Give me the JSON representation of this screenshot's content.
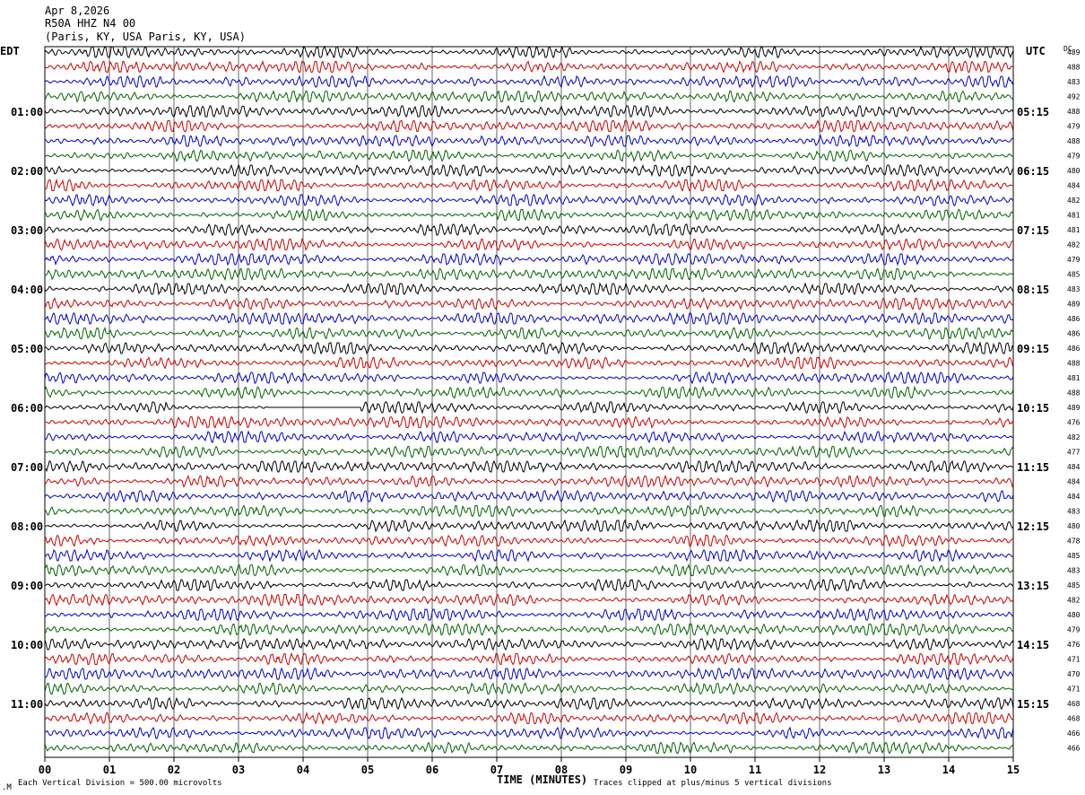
{
  "header": {
    "date": "Apr 8,2026",
    "station": "R50A HHZ N4 00",
    "location": "(Paris, KY, USA Paris, KY, USA)"
  },
  "left_tz": "EDT",
  "right_tz": "UTC",
  "dc_label": "DC",
  "footer": {
    "scale_note": "Each Vertical Division =  500.00 microvolts",
    "clip_note": "Traces clipped at plus/minus 5 vertical divisions"
  },
  "colors": {
    "trace_cycle": [
      "#000000",
      "#cc0000",
      "#0000cc",
      "#006400"
    ],
    "grid": "#000000",
    "background": "#ffffff"
  },
  "chart_data": {
    "type": "line",
    "subtype": "helicorder",
    "xlabel": "TIME (MINUTES)",
    "x_ticks": [
      "00",
      "01",
      "02",
      "03",
      "04",
      "05",
      "06",
      "07",
      "08",
      "09",
      "10",
      "11",
      "12",
      "13",
      "14",
      "15"
    ],
    "xlim": [
      0,
      15
    ],
    "rows_per_hour": 4,
    "left_hour_labels": [
      "01:00",
      "02:00",
      "03:00",
      "04:00",
      "05:00",
      "06:00",
      "07:00",
      "08:00",
      "09:00",
      "10:00",
      "11:00"
    ],
    "right_hour_labels": [
      "05:15",
      "06:15",
      "07:15",
      "08:15",
      "09:15",
      "10:15",
      "11:15",
      "12:15",
      "13:15",
      "14:15",
      "15:15"
    ],
    "dc_values": [
      "489",
      "488",
      "483",
      "492",
      "488",
      "479",
      "488",
      "479",
      "480",
      "484",
      "482",
      "481",
      "481",
      "482",
      "479",
      "485",
      "483",
      "489",
      "486",
      "486",
      "486",
      "488",
      "481",
      "488",
      "489",
      "476",
      "482",
      "477",
      "484",
      "484",
      "484",
      "483",
      "480",
      "478",
      "485",
      "483",
      "485",
      "482",
      "480",
      "479",
      "476",
      "471",
      "470",
      "471",
      "468",
      "468",
      "466",
      "466"
    ],
    "gap": {
      "row": 24,
      "x_start": 3.45,
      "x_end": 4.9,
      "note": "flat segment in trace"
    }
  }
}
